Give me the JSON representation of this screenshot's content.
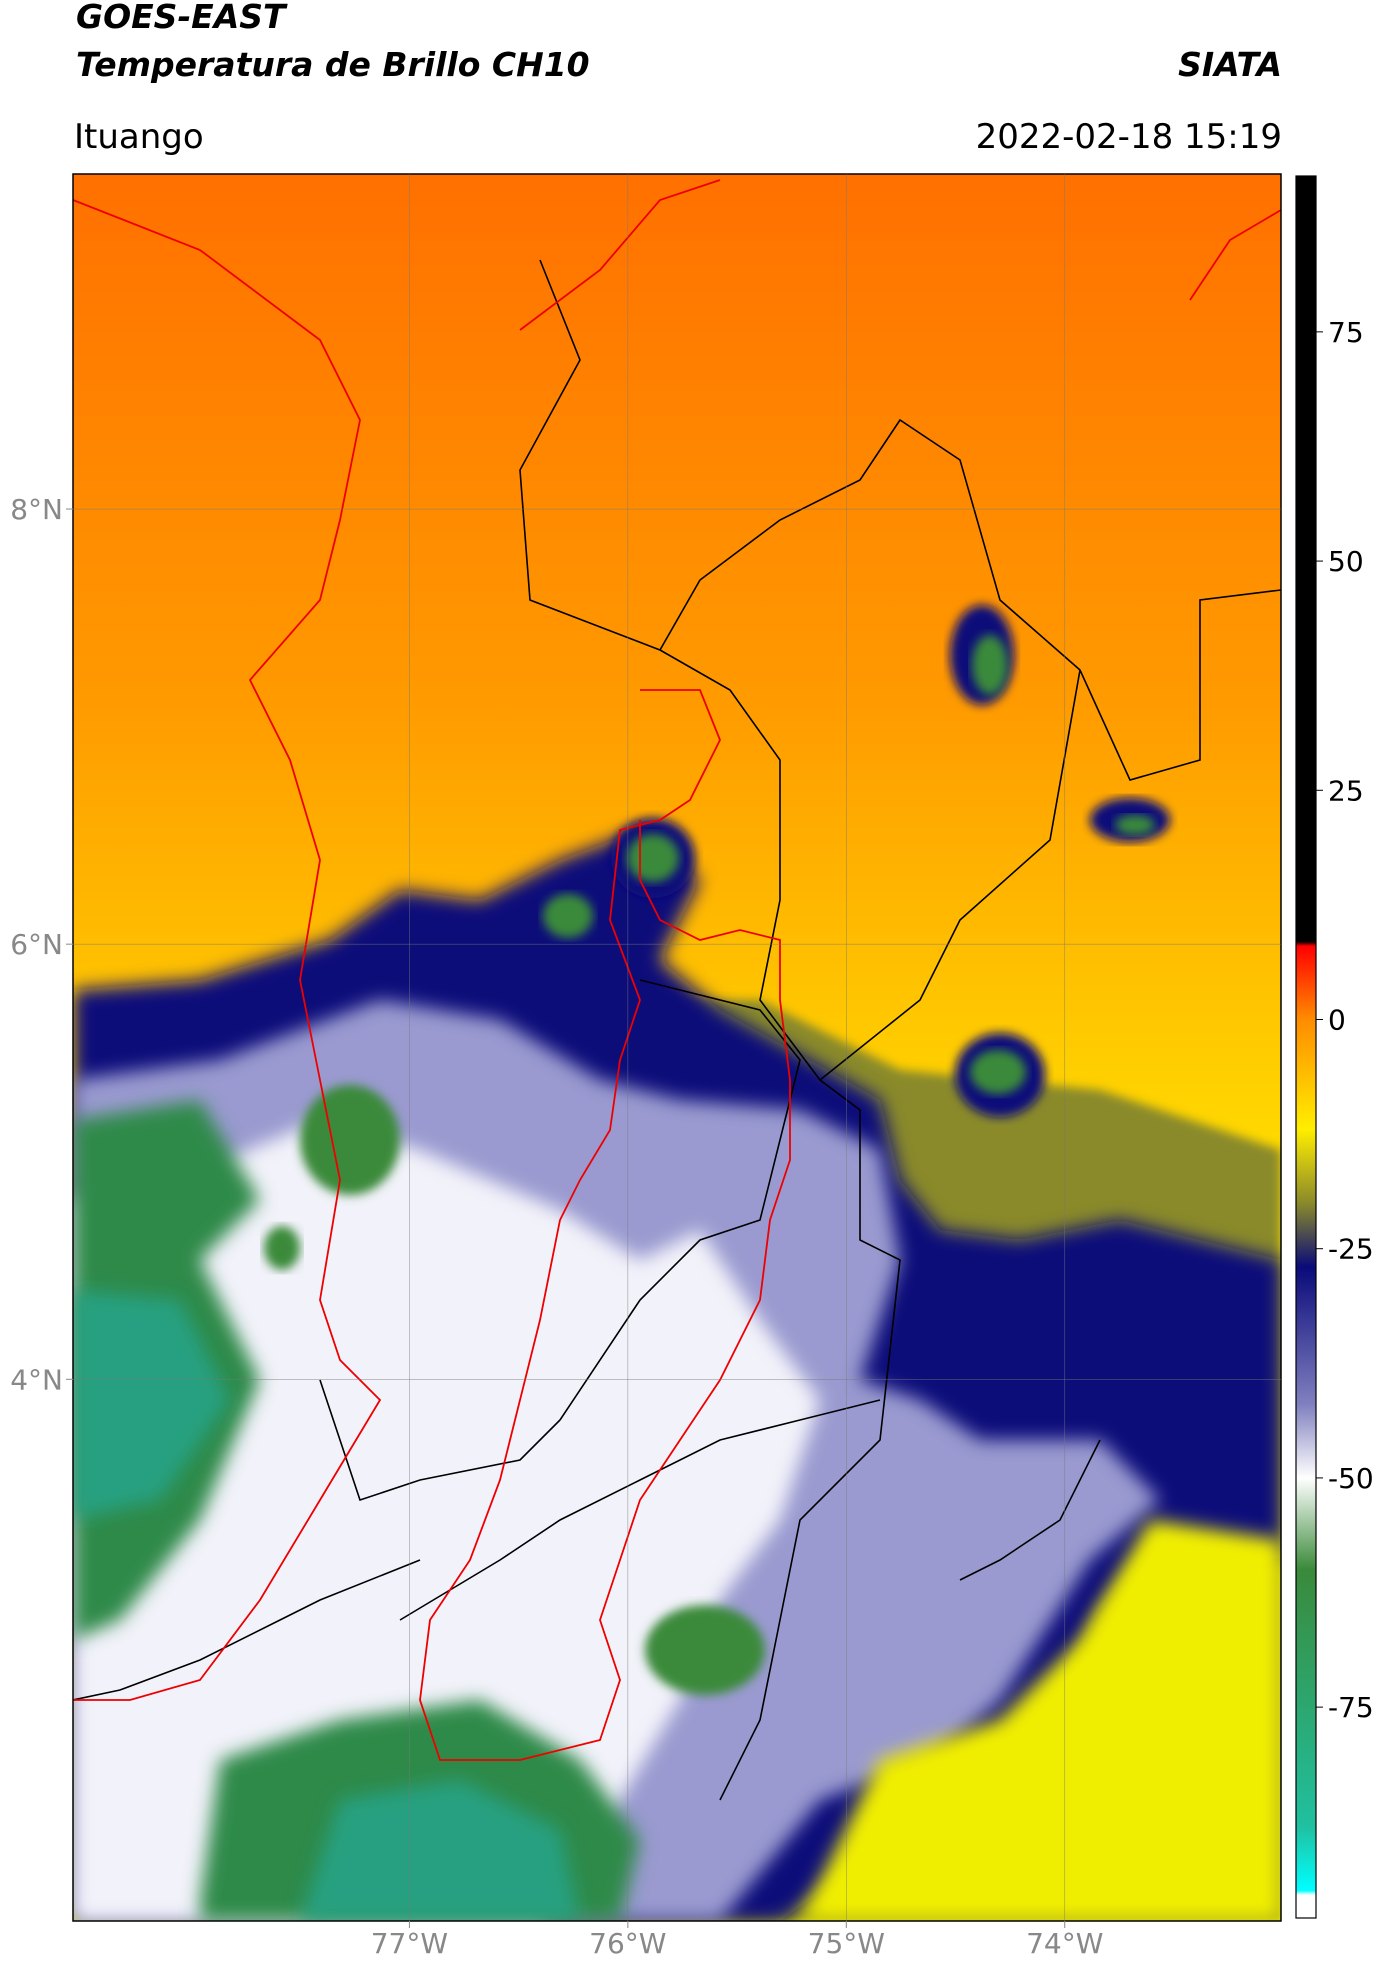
{
  "header": {
    "title": "GOES-EAST",
    "subtitle": "Temperatura de Brillo CH10",
    "source": "SIATA",
    "location": "Ituango",
    "datetime": "2022-02-18 15:19"
  },
  "map": {
    "lonlim": [
      -78.54,
      -73.01
    ],
    "latlim": [
      1.51,
      9.54
    ],
    "xticks": [
      {
        "value": -77,
        "label": "77°W"
      },
      {
        "value": -76,
        "label": "76°W"
      },
      {
        "value": -75,
        "label": "75°W"
      },
      {
        "value": -74,
        "label": "74°W"
      }
    ],
    "yticks": [
      {
        "value": 8,
        "label": "8°N"
      },
      {
        "value": 6,
        "label": "6°N"
      },
      {
        "value": 4,
        "label": "4°N"
      }
    ],
    "grid": true
  },
  "colorbar": {
    "lim": [
      -98,
      92
    ],
    "ticks": [
      75,
      50,
      25,
      0,
      -25,
      -50,
      -75
    ],
    "colormap": [
      {
        "value": 92,
        "color": "#000000"
      },
      {
        "value": 8.5,
        "color": "#000000"
      },
      {
        "value": 8,
        "color": "#ff0000"
      },
      {
        "value": 0,
        "color": "#ff8c00"
      },
      {
        "value": -12,
        "color": "#ffee00"
      },
      {
        "value": -20,
        "color": "#8a8a2a"
      },
      {
        "value": -27,
        "color": "#0a0a7a"
      },
      {
        "value": -42,
        "color": "#8080c0"
      },
      {
        "value": -50,
        "color": "#ffffff"
      },
      {
        "value": -60,
        "color": "#3a8a3a"
      },
      {
        "value": -88,
        "color": "#20c0a0"
      },
      {
        "value": -95,
        "color": "#00ffff"
      },
      {
        "value": -95.5,
        "color": "#ffffff"
      },
      {
        "value": -98,
        "color": "#ffffff"
      }
    ]
  }
}
